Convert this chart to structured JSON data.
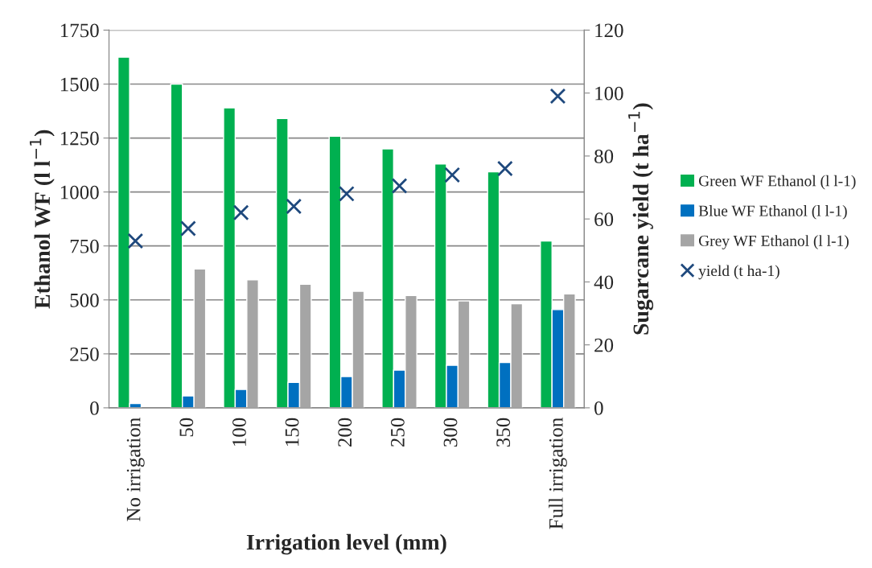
{
  "chart_data": {
    "type": "bar",
    "xlabel": "Irrigation level (mm)",
    "ylabel": "Ethanol WF (l l$^{−1}$)",
    "y2label": "Sugarcane yield (t ha$^{−1}$)",
    "categories": [
      "No irrigation",
      "50",
      "100",
      "150",
      "200",
      "250",
      "300",
      "350",
      "Full irrigation"
    ],
    "series": [
      {
        "name": "Green WF Ethanol (l l-1)",
        "color": "#00b050",
        "values": [
          1625,
          1500,
          1390,
          1340,
          1258,
          1200,
          1130,
          1093,
          773
        ]
      },
      {
        "name": "Blue WF Ethanol (l l-1)",
        "color": "#0070c0",
        "values": [
          20,
          55,
          85,
          118,
          145,
          175,
          197,
          210,
          455
        ]
      },
      {
        "name": "Grey WF Ethanol (l l-1)",
        "color": "#a5a5a5",
        "values": [
          null,
          643,
          593,
          573,
          540,
          520,
          495,
          482,
          528
        ]
      },
      {
        "name": "yield (t ha-1)",
        "color": "#1f497d",
        "type": "scatter",
        "axis": "y2",
        "marker": "cross",
        "values": [
          53,
          57,
          62,
          64,
          68,
          70.5,
          74,
          76,
          99
        ]
      }
    ],
    "ylim": [
      0,
      1750
    ],
    "yticks": [
      0,
      250,
      500,
      750,
      1000,
      1250,
      1500,
      1750
    ],
    "y2lim": [
      0,
      120
    ],
    "y2ticks": [
      0,
      20,
      40,
      60,
      80,
      100,
      120
    ],
    "grid": "y",
    "legend": "right"
  }
}
